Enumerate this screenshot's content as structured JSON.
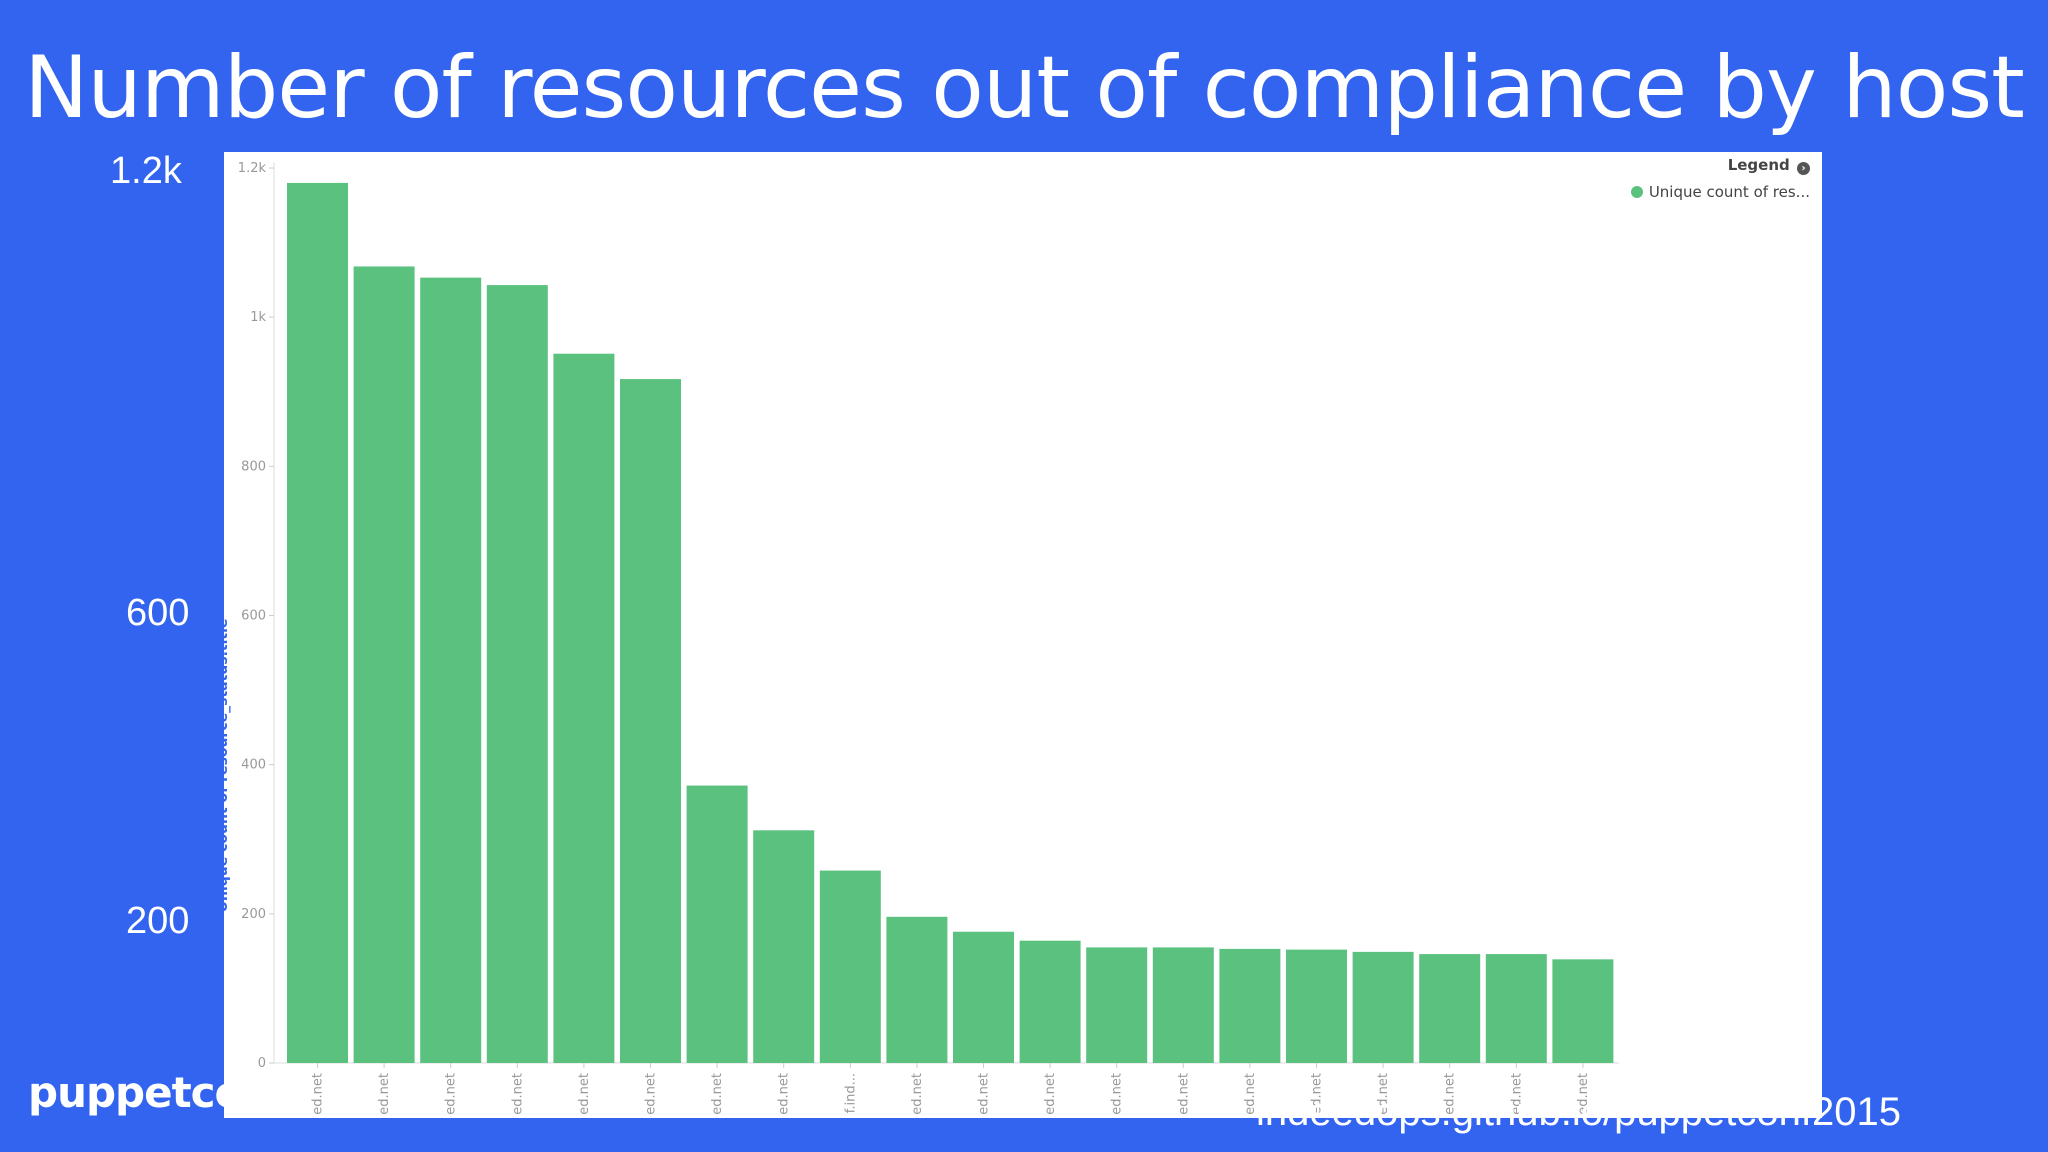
{
  "slide": {
    "title": "Number of resources out of compliance by host",
    "overlay_labels": [
      "1.2k",
      "600",
      "200"
    ],
    "logo": "puppetcon",
    "footer_url": "indeedops.github.io/puppetconf2015"
  },
  "colors": {
    "background": "#3264f0",
    "bar": "#5bc17f",
    "panel": "#ffffff"
  },
  "chart_data": {
    "type": "bar",
    "title": "",
    "xlabel": "",
    "ylabel": "Unique count of resource_status.title",
    "ylim": [
      0,
      1200
    ],
    "yticks": [
      {
        "value": 0,
        "label": "0"
      },
      {
        "value": 200,
        "label": "200"
      },
      {
        "value": 400,
        "label": "400"
      },
      {
        "value": 600,
        "label": "600"
      },
      {
        "value": 800,
        "label": "800"
      },
      {
        "value": 1000,
        "label": "1k"
      },
      {
        "value": 1200,
        "label": "1.2k"
      }
    ],
    "categories": [
      "ed.net",
      "ed.net",
      "ed.net",
      "ed.net",
      "ed.net",
      "ed.net",
      "ed.net",
      "ed.net",
      "f.ind...",
      "ed.net",
      "ed.net",
      "ed.net",
      "ed.net",
      "ed.net",
      "ed.net",
      "ed.net",
      "ed.net",
      "ed.net",
      "ed.net",
      "ed.net"
    ],
    "series": [
      {
        "name": "Unique count of res...",
        "values": [
          1180,
          1068,
          1053,
          1043,
          951,
          917,
          372,
          312,
          258,
          196,
          176,
          164,
          155,
          155,
          153,
          152,
          149,
          146,
          146,
          139
        ]
      }
    ],
    "legend": {
      "title": "Legend",
      "position": "top-right"
    },
    "grid": false
  }
}
